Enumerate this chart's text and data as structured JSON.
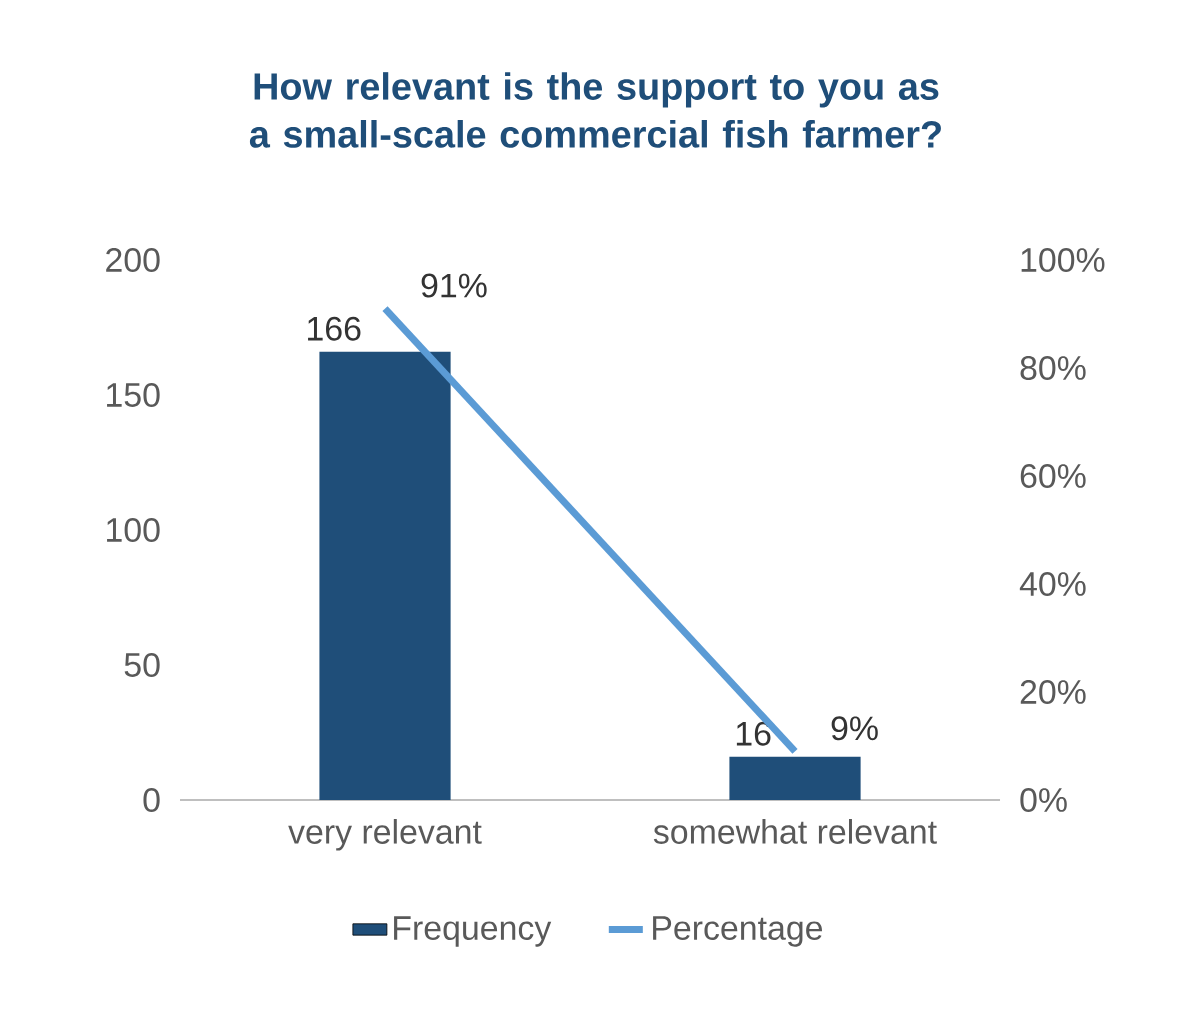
{
  "chart_data": {
    "type": "bar",
    "title": "How relevant is the support to you as a small-scale commercial fish farmer?",
    "categories": [
      "very relevant",
      "somewhat relevant"
    ],
    "series": [
      {
        "name": "Frequency",
        "color": "#1f4e79",
        "values": [
          166,
          16
        ],
        "value_labels": [
          "166",
          "16"
        ]
      },
      {
        "name": "Percentage",
        "type": "line",
        "axis": "y2",
        "color": "#5b9bd5",
        "values": [
          91,
          9
        ],
        "value_labels": [
          "91%",
          "9%"
        ]
      }
    ],
    "ylim": [
      0,
      200
    ],
    "yticks": [
      0,
      50,
      100,
      150,
      200
    ],
    "y2lim": [
      0,
      100
    ],
    "y2ticks": [
      {
        "value": 0,
        "label": "0%"
      },
      {
        "value": 20,
        "label": "20%"
      },
      {
        "value": 40,
        "label": "40%"
      },
      {
        "value": 60,
        "label": "60%"
      },
      {
        "value": 80,
        "label": "80%"
      },
      {
        "value": 100,
        "label": "100%"
      }
    ],
    "legend": "bottom",
    "marker": "none",
    "line_style": "solid"
  }
}
